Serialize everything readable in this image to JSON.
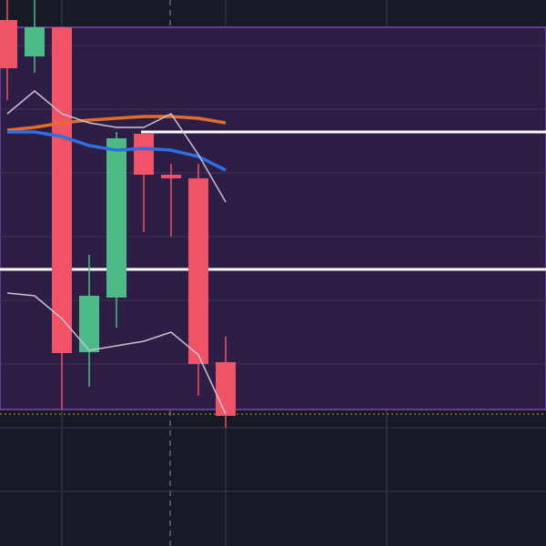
{
  "chart_data": {
    "type": "candlestick",
    "categories": [
      null,
      null,
      null,
      null,
      null,
      null,
      null,
      null,
      null
    ],
    "open": [
      578,
      538,
      570,
      213,
      273,
      453,
      408,
      404,
      202
    ],
    "high": [
      600,
      600,
      570,
      320,
      455,
      453,
      420,
      420,
      230
    ],
    "low": [
      490,
      520,
      150,
      175,
      240,
      345,
      340,
      165,
      130
    ],
    "close": [
      525,
      570,
      212,
      275,
      448,
      408,
      404,
      200,
      143
    ],
    "up_color": "#4cbb87",
    "down_color": "#f05266",
    "lines": [
      {
        "color": "#e46c2a",
        "values": [
          457,
          460,
          465,
          468,
          470,
          472,
          472,
          470,
          465
        ]
      },
      {
        "color": "#2f6fe0",
        "values": [
          455,
          455,
          450,
          440,
          435,
          437,
          435,
          428,
          413
        ]
      },
      {
        "color": "#c9c3d6",
        "values": [
          475,
          500,
          475,
          465,
          460,
          460,
          475,
          430,
          378
        ]
      },
      {
        "color": "#c9c3d6",
        "values": [
          278,
          275,
          250,
          215,
          220,
          225,
          235,
          210,
          145
        ]
      }
    ],
    "hlines": [
      455,
      304
    ],
    "dotted_line": 145,
    "zone": [
      150,
      570
    ],
    "ylim": [
      0,
      600
    ],
    "yticks": [
      60,
      130,
      200,
      270,
      340,
      410,
      480,
      550
    ],
    "grid": true
  }
}
